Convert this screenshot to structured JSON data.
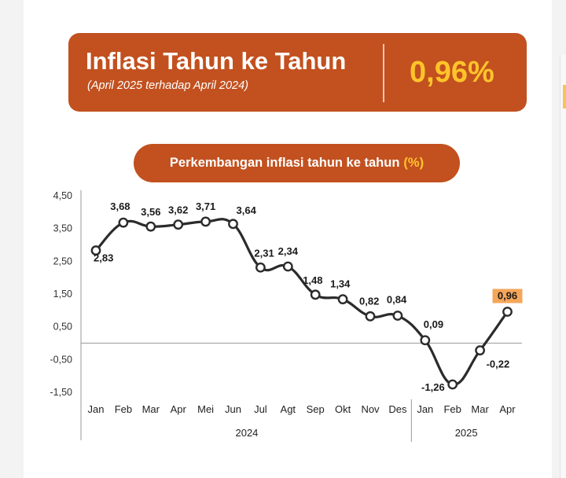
{
  "header": {
    "title": "Inflasi Tahun ke Tahun",
    "subtitle": "(April 2025 terhadap April 2024)",
    "value": "0,96%"
  },
  "section": {
    "title": "Perkembangan inflasi tahun ke tahun",
    "unit": "(%)"
  },
  "colors": {
    "accent": "#c2511f",
    "highlight": "#ffc42a",
    "line": "#2b2b2b",
    "latest_label_bg": "#f5a65b"
  },
  "chart_data": {
    "type": "line",
    "title": "",
    "xlabel": "",
    "ylabel": "",
    "ylim": [
      -1.5,
      4.5
    ],
    "yticks": [
      "4,50",
      "3,50",
      "2,50",
      "1,50",
      "0,50",
      "-0,50",
      "-1,50"
    ],
    "ytick_values": [
      4.5,
      3.5,
      2.5,
      1.5,
      0.5,
      -0.5,
      -1.5
    ],
    "categories": [
      "Jan",
      "Feb",
      "Mar",
      "Apr",
      "Mei",
      "Jun",
      "Jul",
      "Agt",
      "Sep",
      "Okt",
      "Nov",
      "Des",
      "Jan",
      "Feb",
      "Mar",
      "Apr"
    ],
    "groups": [
      {
        "label": "2024",
        "count": 12
      },
      {
        "label": "2025",
        "count": 4
      }
    ],
    "values": [
      2.83,
      3.68,
      3.56,
      3.62,
      3.71,
      3.64,
      2.31,
      2.34,
      1.48,
      1.34,
      0.82,
      0.84,
      0.09,
      -1.26,
      -0.22,
      0.96
    ],
    "value_labels": [
      "2,83",
      "3,68",
      "3,56",
      "3,62",
      "3,71",
      "3,64",
      "2,31",
      "2,34",
      "1,48",
      "1,34",
      "0,82",
      "0,84",
      "0,09",
      "-1,26",
      "-0,22",
      "0,96"
    ],
    "zero_line": true,
    "grid": false,
    "smooth": true
  }
}
